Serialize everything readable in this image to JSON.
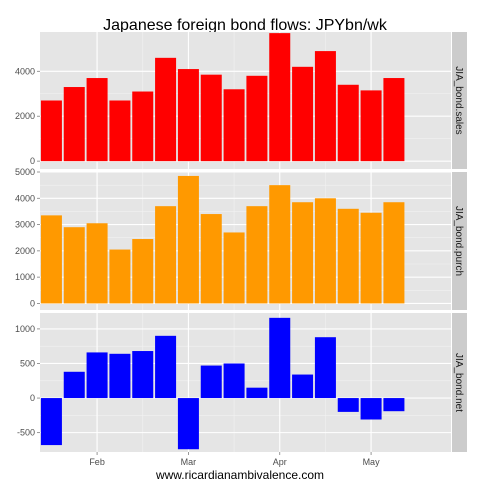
{
  "chart_data": {
    "type": "bar",
    "title": "Japanese foreign bond flows: JPYbn/wk",
    "footer": "www.ricardianambivalence.com",
    "x_tick_labels": [
      "Feb",
      "Mar",
      "Apr",
      "May"
    ],
    "x_ticks": [
      2,
      6,
      10,
      14
    ],
    "xlim": [
      -0.5,
      17.5
    ],
    "grid": true,
    "panels": [
      {
        "strip_label": "JIA_bond.sales",
        "color": "#ff0000",
        "ylim": [
          -350,
          5750
        ],
        "y_ticks": [
          0,
          2000,
          4000
        ],
        "y_tick_labels": [
          "0",
          "2000",
          "4000"
        ],
        "values": [
          2700,
          3300,
          3700,
          2700,
          3100,
          4600,
          4100,
          3850,
          3200,
          3800,
          5700,
          4200,
          4900,
          3400,
          3150,
          3700
        ]
      },
      {
        "strip_label": "JIA_bond.purch",
        "color": "#ff9900",
        "ylim": [
          -250,
          5000
        ],
        "y_ticks": [
          0,
          1000,
          2000,
          3000,
          4000,
          5000
        ],
        "y_tick_labels": [
          "0",
          "1000",
          "2000",
          "3000",
          "4000",
          "5000"
        ],
        "values": [
          3350,
          2900,
          3050,
          2050,
          2450,
          3700,
          4850,
          3400,
          2700,
          3700,
          4500,
          3850,
          4000,
          3600,
          3450,
          3850
        ]
      },
      {
        "strip_label": "JIA_bond.net",
        "color": "#0000ff",
        "ylim": [
          -780,
          1230
        ],
        "y_ticks": [
          -500,
          0,
          500,
          1000
        ],
        "y_tick_labels": [
          "-500",
          "0",
          "500",
          "1000"
        ],
        "values": [
          -680,
          380,
          660,
          640,
          680,
          900,
          -740,
          470,
          500,
          150,
          1160,
          340,
          880,
          -200,
          -310,
          -190
        ]
      }
    ]
  }
}
